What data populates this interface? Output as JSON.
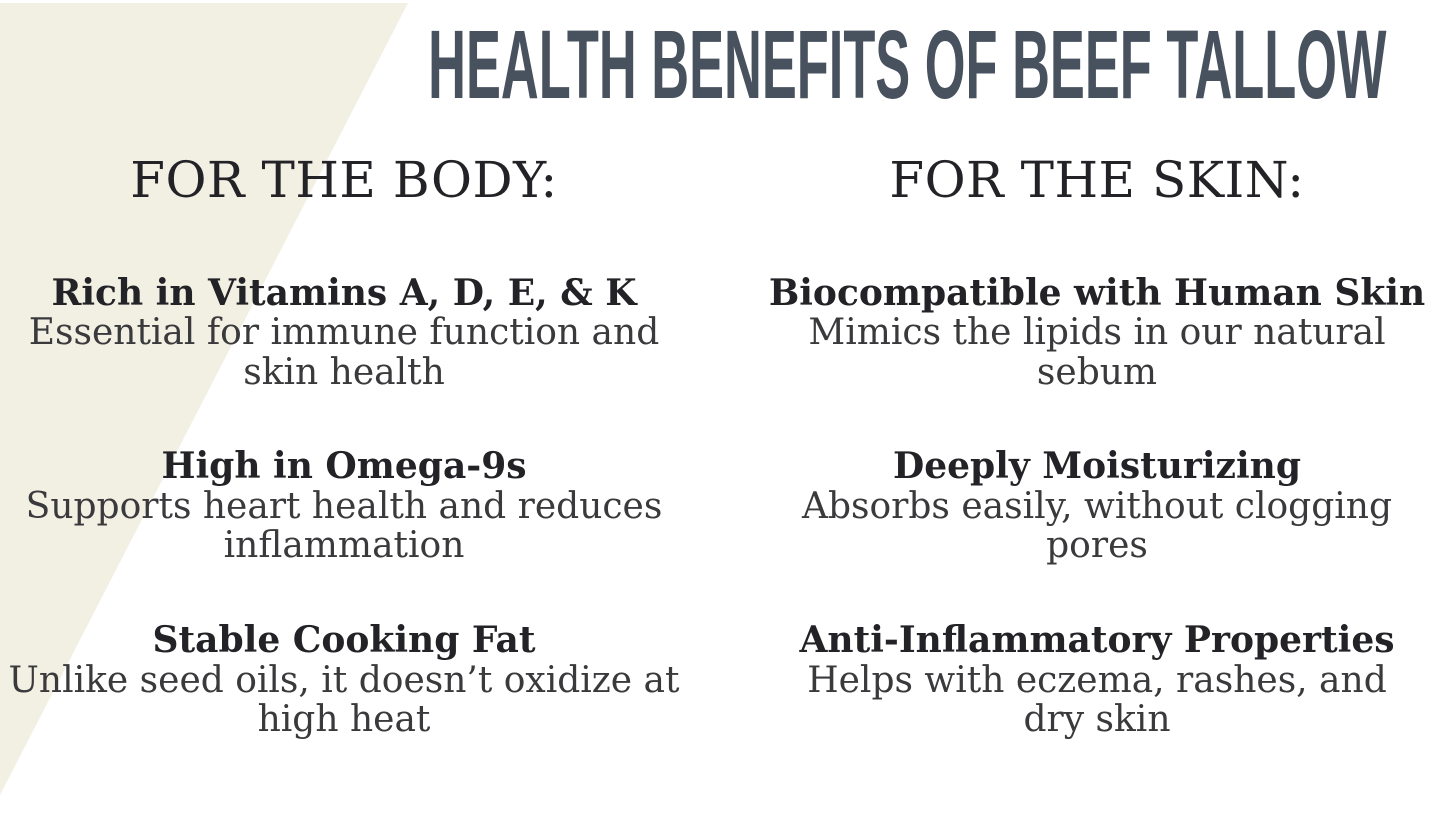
{
  "page": {
    "title": "HEALTH BENEFITS OF BEEF TALLOW",
    "colors": {
      "background": "#ffffff",
      "accent-shape": "#f2efe3",
      "title": "#48525f",
      "heading": "#232327",
      "body-text": "#3a3a3d"
    }
  },
  "columns": [
    {
      "header": "FOR THE BODY:",
      "items": [
        {
          "title": "Rich in Vitamins A, D, E, & K",
          "description": "Essential for immune function and skin health"
        },
        {
          "title": "High in Omega-9s",
          "description": "Supports heart health and reduces inflammation"
        },
        {
          "title": "Stable Cooking Fat",
          "description": "Unlike seed oils, it doesn’t oxidize at high heat"
        }
      ]
    },
    {
      "header": "FOR THE SKIN:",
      "items": [
        {
          "title": "Biocompatible with Human Skin",
          "description": "Mimics the lipids in our natural sebum"
        },
        {
          "title": "Deeply Moisturizing",
          "description": "Absorbs easily, without clogging pores"
        },
        {
          "title": "Anti-Inflammatory Properties",
          "description": "Helps with eczema, rashes, and dry skin"
        }
      ]
    }
  ]
}
